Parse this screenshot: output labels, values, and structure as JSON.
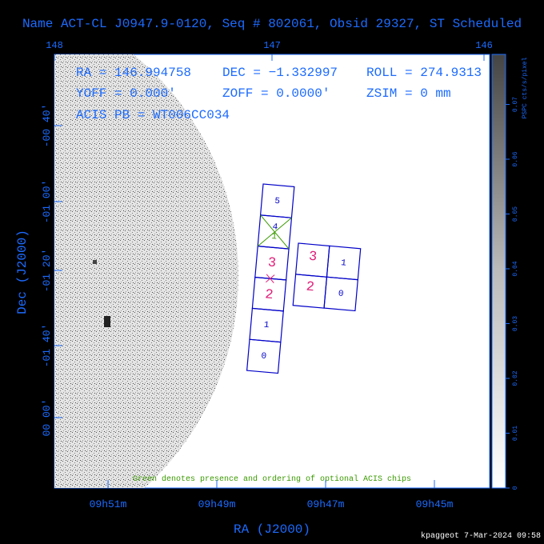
{
  "title": "Name ACT-CL J0947.9-0120, Seq # 802061, Obsid 29327, ST Scheduled",
  "info": {
    "ra": "RA = 146.994758",
    "dec": "DEC = −1.332997",
    "roll": "ROLL = 274.9313",
    "yoff": "YOFF =   0.000'",
    "zoff": "ZOFF =  0.0000'",
    "zsim": "ZSIM = 0 mm",
    "acis_pb": "ACIS PB = WT006CC034"
  },
  "top_axis": {
    "labels": [
      "148",
      "147",
      "146"
    ]
  },
  "bottom_axis": {
    "title": "RA (J2000)",
    "labels": [
      "09h51m",
      "09h49m",
      "09h47m",
      "09h45m"
    ]
  },
  "left_axis": {
    "title": "Dec (J2000)",
    "labels": [
      "-00 40'",
      "-01 00'",
      "-01 20'",
      "-01 40'",
      "00 00'"
    ]
  },
  "colorbar": {
    "title": "PSPC cts/s/pixel",
    "labels": [
      "0",
      "0.01",
      "0.02",
      "0.03",
      "0.04",
      "0.05",
      "0.06",
      "0.07"
    ]
  },
  "chips": {
    "i_array": [
      "5",
      "4",
      "3",
      "2",
      "1",
      "0"
    ],
    "s_array": [
      "3",
      "1",
      "2",
      "0"
    ],
    "optional_order": "1"
  },
  "note": "Green denotes presence and ordering of optional ACIS chips",
  "footer": "kpaggeot  7-Mar-2024 09:58"
}
